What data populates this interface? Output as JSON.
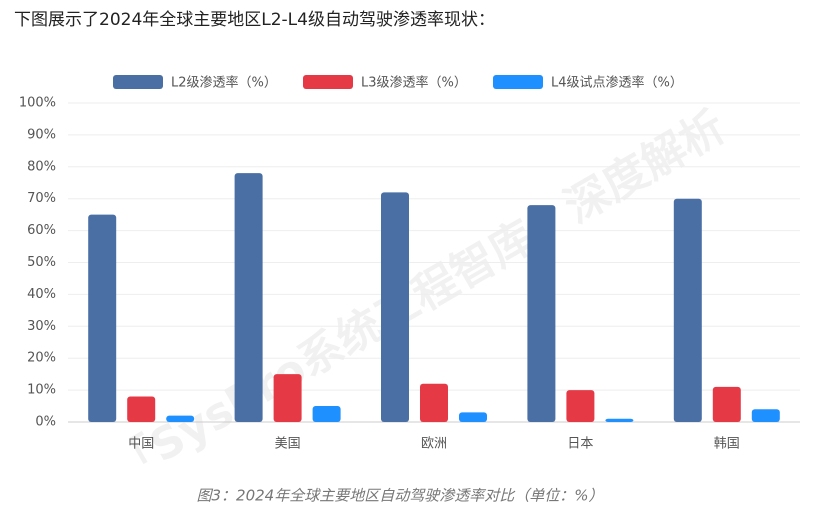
{
  "heading": "下图展示了2024年全球主要地区L2-L4级自动驾驶渗透率现状：",
  "watermark": "「SysPro系统工程智库」深度解析",
  "chart_data": {
    "type": "bar",
    "categories": [
      "中国",
      "美国",
      "欧洲",
      "日本",
      "韩国"
    ],
    "series": [
      {
        "name": "L2级渗透率（%）",
        "color": "#4a6fa5",
        "values": [
          65,
          78,
          72,
          68,
          70
        ]
      },
      {
        "name": "L3级渗透率（%）",
        "color": "#e63946",
        "values": [
          8,
          15,
          12,
          10,
          11
        ]
      },
      {
        "name": "L4级试点渗透率（%）",
        "color": "#1e90ff",
        "values": [
          2,
          5,
          3,
          1,
          4
        ]
      }
    ],
    "ylim": [
      0,
      100
    ],
    "yticks": [
      {
        "value": 0,
        "label": "0%"
      },
      {
        "value": 10,
        "label": "10%"
      },
      {
        "value": 20,
        "label": "20%"
      },
      {
        "value": 30,
        "label": "30%"
      },
      {
        "value": 40,
        "label": "40%"
      },
      {
        "value": 50,
        "label": "50%"
      },
      {
        "value": 60,
        "label": "60%"
      },
      {
        "value": 70,
        "label": "70%"
      },
      {
        "value": 80,
        "label": "80%"
      },
      {
        "value": 90,
        "label": "90%"
      },
      {
        "value": 100,
        "label": "100%"
      }
    ],
    "grid": true,
    "legend": "top",
    "caption": "图3：2024年全球主要地区自动驾驶渗透率对比（单位：%）"
  }
}
